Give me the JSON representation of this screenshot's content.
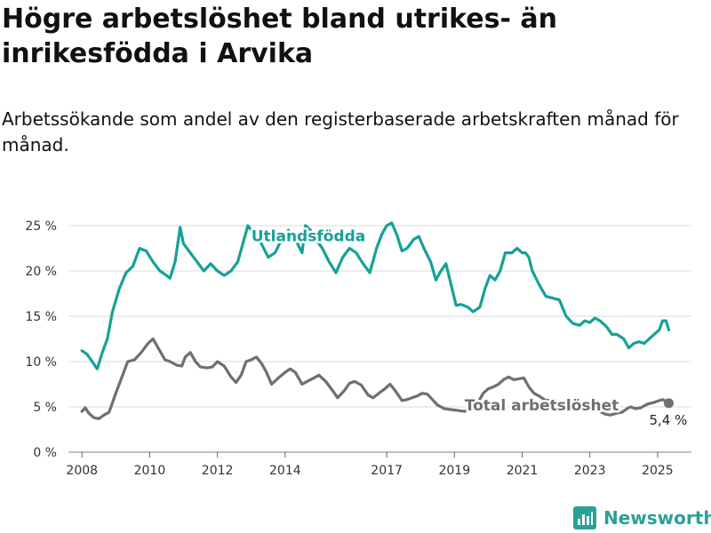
{
  "title": "Högre arbetslöshet bland utrikes- än inrikesfödda i Arvika",
  "subtitle": "Arbetssökande som andel av den registerbaserade arbetskraften månad för månad.",
  "brand": {
    "name": "Newsworthy",
    "icon": "newsworthy-logo-icon",
    "color": "#2aa198"
  },
  "chart_data": {
    "type": "line",
    "x_unit": "year (decimal)",
    "xlim": [
      2007.6,
      2026.0
    ],
    "ylim": [
      0,
      25
    ],
    "yticks": [
      0,
      5,
      10,
      15,
      20,
      25
    ],
    "ytick_labels": [
      "0 %",
      "5 %",
      "10 %",
      "15 %",
      "20 %",
      "25 %"
    ],
    "xticks": [
      2008,
      2010,
      2012,
      2014,
      2017,
      2019,
      2021,
      2023,
      2025
    ],
    "xtick_labels": [
      "2008",
      "2010",
      "2012",
      "2014",
      "2017",
      "2019",
      "2021",
      "2023",
      "2025"
    ],
    "grid": true,
    "series": [
      {
        "name": "Utlandsfödda",
        "color": "#16a196",
        "points": [
          [
            2008.0,
            11.2
          ],
          [
            2008.15,
            10.8
          ],
          [
            2008.3,
            10.0
          ],
          [
            2008.45,
            9.2
          ],
          [
            2008.6,
            11.0
          ],
          [
            2008.75,
            12.5
          ],
          [
            2008.9,
            15.5
          ],
          [
            2009.1,
            18.0
          ],
          [
            2009.3,
            19.8
          ],
          [
            2009.5,
            20.5
          ],
          [
            2009.7,
            22.5
          ],
          [
            2009.9,
            22.2
          ],
          [
            2010.1,
            21.0
          ],
          [
            2010.3,
            20.0
          ],
          [
            2010.5,
            19.5
          ],
          [
            2010.6,
            19.2
          ],
          [
            2010.75,
            21.0
          ],
          [
            2010.9,
            24.8
          ],
          [
            2011.0,
            23.0
          ],
          [
            2011.2,
            22.0
          ],
          [
            2011.4,
            21.0
          ],
          [
            2011.6,
            20.0
          ],
          [
            2011.8,
            20.8
          ],
          [
            2012.0,
            20.0
          ],
          [
            2012.2,
            19.5
          ],
          [
            2012.4,
            20.0
          ],
          [
            2012.6,
            21.0
          ],
          [
            2012.75,
            23.0
          ],
          [
            2012.9,
            25.0
          ],
          [
            2013.1,
            24.0
          ],
          [
            2013.3,
            23.0
          ],
          [
            2013.5,
            21.5
          ],
          [
            2013.7,
            22.0
          ],
          [
            2013.9,
            23.5
          ],
          [
            2014.1,
            24.5
          ],
          [
            2014.3,
            23.5
          ],
          [
            2014.5,
            22.0
          ],
          [
            2014.6,
            25.0
          ],
          [
            2014.75,
            24.5
          ],
          [
            2014.9,
            23.5
          ],
          [
            2015.1,
            22.5
          ],
          [
            2015.3,
            21.0
          ],
          [
            2015.5,
            19.8
          ],
          [
            2015.7,
            21.5
          ],
          [
            2015.9,
            22.5
          ],
          [
            2016.1,
            22.0
          ],
          [
            2016.3,
            20.8
          ],
          [
            2016.5,
            19.8
          ],
          [
            2016.7,
            22.5
          ],
          [
            2016.85,
            24.0
          ],
          [
            2017.0,
            25.0
          ],
          [
            2017.15,
            25.3
          ],
          [
            2017.3,
            24.0
          ],
          [
            2017.45,
            22.2
          ],
          [
            2017.6,
            22.5
          ],
          [
            2017.8,
            23.5
          ],
          [
            2017.95,
            23.8
          ],
          [
            2018.1,
            22.5
          ],
          [
            2018.3,
            21.0
          ],
          [
            2018.45,
            19.0
          ],
          [
            2018.6,
            20.0
          ],
          [
            2018.75,
            20.8
          ],
          [
            2018.9,
            18.5
          ],
          [
            2019.05,
            16.2
          ],
          [
            2019.2,
            16.3
          ],
          [
            2019.4,
            16.0
          ],
          [
            2019.55,
            15.5
          ],
          [
            2019.75,
            16.0
          ],
          [
            2019.9,
            18.0
          ],
          [
            2020.05,
            19.5
          ],
          [
            2020.2,
            19.0
          ],
          [
            2020.35,
            20.0
          ],
          [
            2020.5,
            22.0
          ],
          [
            2020.7,
            22.0
          ],
          [
            2020.85,
            22.5
          ],
          [
            2021.0,
            22.0
          ],
          [
            2021.1,
            22.0
          ],
          [
            2021.2,
            21.5
          ],
          [
            2021.3,
            20.0
          ],
          [
            2021.5,
            18.5
          ],
          [
            2021.7,
            17.2
          ],
          [
            2021.9,
            17.0
          ],
          [
            2022.1,
            16.8
          ],
          [
            2022.3,
            15.0
          ],
          [
            2022.5,
            14.2
          ],
          [
            2022.7,
            14.0
          ],
          [
            2022.85,
            14.5
          ],
          [
            2023.0,
            14.3
          ],
          [
            2023.15,
            14.8
          ],
          [
            2023.3,
            14.5
          ],
          [
            2023.5,
            13.8
          ],
          [
            2023.65,
            13.0
          ],
          [
            2023.8,
            13.0
          ],
          [
            2024.0,
            12.5
          ],
          [
            2024.15,
            11.5
          ],
          [
            2024.3,
            12.0
          ],
          [
            2024.45,
            12.2
          ],
          [
            2024.6,
            12.0
          ],
          [
            2024.75,
            12.5
          ],
          [
            2024.9,
            13.0
          ],
          [
            2025.05,
            13.5
          ],
          [
            2025.15,
            14.5
          ],
          [
            2025.25,
            14.5
          ],
          [
            2025.33,
            13.5
          ]
        ]
      },
      {
        "name": "Total arbetslöshet",
        "color": "#6e6e73",
        "end_label": "5,4 %",
        "points": [
          [
            2008.0,
            4.5
          ],
          [
            2008.1,
            4.9
          ],
          [
            2008.2,
            4.3
          ],
          [
            2008.35,
            3.8
          ],
          [
            2008.5,
            3.7
          ],
          [
            2008.65,
            4.1
          ],
          [
            2008.8,
            4.4
          ],
          [
            2009.0,
            6.5
          ],
          [
            2009.2,
            8.5
          ],
          [
            2009.35,
            10.0
          ],
          [
            2009.55,
            10.2
          ],
          [
            2009.75,
            11.0
          ],
          [
            2009.95,
            12.0
          ],
          [
            2010.1,
            12.5
          ],
          [
            2010.25,
            11.5
          ],
          [
            2010.45,
            10.2
          ],
          [
            2010.6,
            10.0
          ],
          [
            2010.8,
            9.6
          ],
          [
            2010.95,
            9.5
          ],
          [
            2011.05,
            10.5
          ],
          [
            2011.2,
            11.0
          ],
          [
            2011.35,
            10.0
          ],
          [
            2011.5,
            9.4
          ],
          [
            2011.7,
            9.3
          ],
          [
            2011.85,
            9.4
          ],
          [
            2012.0,
            10.0
          ],
          [
            2012.2,
            9.5
          ],
          [
            2012.4,
            8.3
          ],
          [
            2012.55,
            7.7
          ],
          [
            2012.7,
            8.5
          ],
          [
            2012.85,
            10.0
          ],
          [
            2013.0,
            10.2
          ],
          [
            2013.15,
            10.5
          ],
          [
            2013.3,
            9.8
          ],
          [
            2013.45,
            8.8
          ],
          [
            2013.6,
            7.5
          ],
          [
            2013.8,
            8.2
          ],
          [
            2014.0,
            8.8
          ],
          [
            2014.15,
            9.2
          ],
          [
            2014.3,
            8.8
          ],
          [
            2014.5,
            7.5
          ],
          [
            2014.65,
            7.8
          ],
          [
            2014.85,
            8.2
          ],
          [
            2015.0,
            8.5
          ],
          [
            2015.2,
            7.8
          ],
          [
            2015.4,
            6.8
          ],
          [
            2015.55,
            6.0
          ],
          [
            2015.75,
            6.8
          ],
          [
            2015.9,
            7.6
          ],
          [
            2016.05,
            7.8
          ],
          [
            2016.25,
            7.4
          ],
          [
            2016.45,
            6.3
          ],
          [
            2016.6,
            6.0
          ],
          [
            2016.8,
            6.6
          ],
          [
            2016.95,
            7.0
          ],
          [
            2017.1,
            7.5
          ],
          [
            2017.25,
            6.8
          ],
          [
            2017.45,
            5.7
          ],
          [
            2017.6,
            5.8
          ],
          [
            2017.75,
            6.0
          ],
          [
            2017.9,
            6.2
          ],
          [
            2018.05,
            6.5
          ],
          [
            2018.2,
            6.4
          ],
          [
            2018.35,
            5.8
          ],
          [
            2018.5,
            5.2
          ],
          [
            2018.7,
            4.8
          ],
          [
            2018.9,
            4.7
          ],
          [
            2019.1,
            4.6
          ],
          [
            2019.3,
            4.5
          ],
          [
            2019.5,
            4.8
          ],
          [
            2019.7,
            5.5
          ],
          [
            2019.85,
            6.5
          ],
          [
            2020.0,
            7.0
          ],
          [
            2020.15,
            7.2
          ],
          [
            2020.3,
            7.5
          ],
          [
            2020.45,
            8.0
          ],
          [
            2020.6,
            8.3
          ],
          [
            2020.75,
            8.0
          ],
          [
            2020.9,
            8.1
          ],
          [
            2021.05,
            8.2
          ],
          [
            2021.2,
            7.2
          ],
          [
            2021.35,
            6.5
          ],
          [
            2021.5,
            6.2
          ],
          [
            2021.7,
            5.7
          ],
          [
            2021.9,
            5.8
          ],
          [
            2022.05,
            5.6
          ],
          [
            2022.2,
            5.0
          ],
          [
            2022.35,
            4.8
          ],
          [
            2022.5,
            4.7
          ],
          [
            2022.7,
            4.8
          ],
          [
            2022.85,
            4.9
          ],
          [
            2023.0,
            4.6
          ],
          [
            2023.15,
            4.8
          ],
          [
            2023.3,
            4.5
          ],
          [
            2023.45,
            4.2
          ],
          [
            2023.6,
            4.1
          ],
          [
            2023.8,
            4.3
          ],
          [
            2023.95,
            4.4
          ],
          [
            2024.1,
            4.8
          ],
          [
            2024.2,
            5.0
          ],
          [
            2024.35,
            4.8
          ],
          [
            2024.5,
            4.9
          ],
          [
            2024.7,
            5.3
          ],
          [
            2024.9,
            5.5
          ],
          [
            2025.05,
            5.7
          ],
          [
            2025.15,
            5.8
          ],
          [
            2025.25,
            5.6
          ],
          [
            2025.33,
            5.4
          ]
        ]
      }
    ],
    "annotations": [
      {
        "text": "Utlandsfödda",
        "x": 2013.0,
        "y": 23.3,
        "series": 0
      },
      {
        "text": "Total arbetslöshet",
        "x": 2019.3,
        "y": 4.6,
        "series": 1
      }
    ]
  }
}
